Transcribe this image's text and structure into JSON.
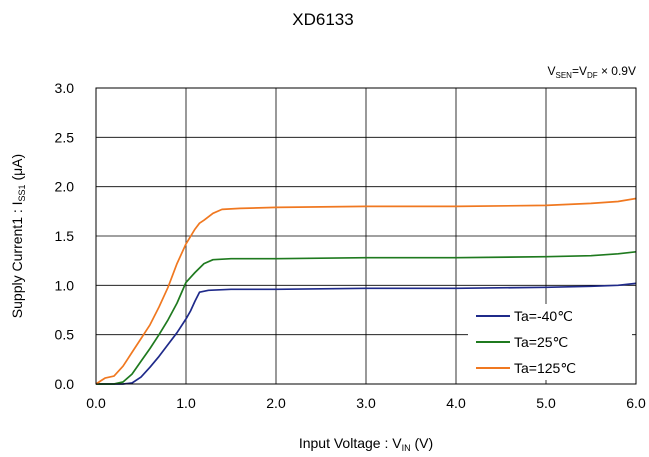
{
  "chart_data": {
    "type": "line",
    "title": "XD6133",
    "condition": {
      "main": "V",
      "sub1": "SEN",
      "mid": "=V",
      "sub2": "DF",
      "tail": " × 0.9V"
    },
    "xlabel": {
      "main": "Input Voltage : V",
      "sub": "IN",
      "tail": " (V)"
    },
    "ylabel": {
      "main": "Supply Current1 : I",
      "sub": "SS1",
      "tail": " (μA)"
    },
    "xlim": [
      0,
      6
    ],
    "ylim": [
      0,
      3
    ],
    "xticks": [
      0,
      1,
      2,
      3,
      4,
      5,
      6
    ],
    "xtick_labels": [
      "0.0",
      "1.0",
      "2.0",
      "3.0",
      "4.0",
      "5.0",
      "6.0"
    ],
    "yticks": [
      0,
      0.5,
      1,
      1.5,
      2,
      2.5,
      3
    ],
    "ytick_labels": [
      "0.0",
      "0.5",
      "1.0",
      "1.5",
      "2.0",
      "2.5",
      "3.0"
    ],
    "grid": true,
    "legend_position": "bottom-right",
    "series": [
      {
        "name": "Ta=-40℃",
        "color": "#1f2a8a",
        "x": [
          0,
          0.3,
          0.4,
          0.5,
          0.6,
          0.7,
          0.8,
          0.9,
          1.0,
          1.05,
          1.1,
          1.15,
          1.25,
          1.5,
          2.0,
          3.0,
          4.0,
          5.0,
          5.5,
          5.8,
          6.0
        ],
        "y": [
          0,
          0,
          0.01,
          0.07,
          0.17,
          0.28,
          0.4,
          0.52,
          0.66,
          0.74,
          0.84,
          0.93,
          0.95,
          0.96,
          0.96,
          0.97,
          0.97,
          0.98,
          0.99,
          1.0,
          1.02
        ]
      },
      {
        "name": "Ta=25℃",
        "color": "#1f7a1f",
        "x": [
          0,
          0.2,
          0.3,
          0.4,
          0.5,
          0.6,
          0.7,
          0.8,
          0.9,
          1.0,
          1.05,
          1.1,
          1.2,
          1.3,
          1.5,
          2.0,
          3.0,
          4.0,
          5.0,
          5.5,
          5.8,
          6.0
        ],
        "y": [
          0,
          0,
          0.02,
          0.1,
          0.23,
          0.36,
          0.5,
          0.65,
          0.82,
          1.03,
          1.08,
          1.13,
          1.22,
          1.26,
          1.27,
          1.27,
          1.28,
          1.28,
          1.29,
          1.3,
          1.32,
          1.34
        ]
      },
      {
        "name": "Ta=125℃",
        "color": "#f07820",
        "x": [
          0,
          0.05,
          0.1,
          0.2,
          0.3,
          0.4,
          0.5,
          0.6,
          0.7,
          0.8,
          0.9,
          1.0,
          1.1,
          1.15,
          1.2,
          1.3,
          1.4,
          1.6,
          2.0,
          3.0,
          4.0,
          5.0,
          5.5,
          5.8,
          6.0
        ],
        "y": [
          0,
          0.03,
          0.06,
          0.08,
          0.18,
          0.32,
          0.46,
          0.6,
          0.78,
          0.98,
          1.22,
          1.42,
          1.57,
          1.63,
          1.66,
          1.73,
          1.77,
          1.78,
          1.79,
          1.8,
          1.8,
          1.81,
          1.83,
          1.85,
          1.88
        ]
      }
    ]
  }
}
